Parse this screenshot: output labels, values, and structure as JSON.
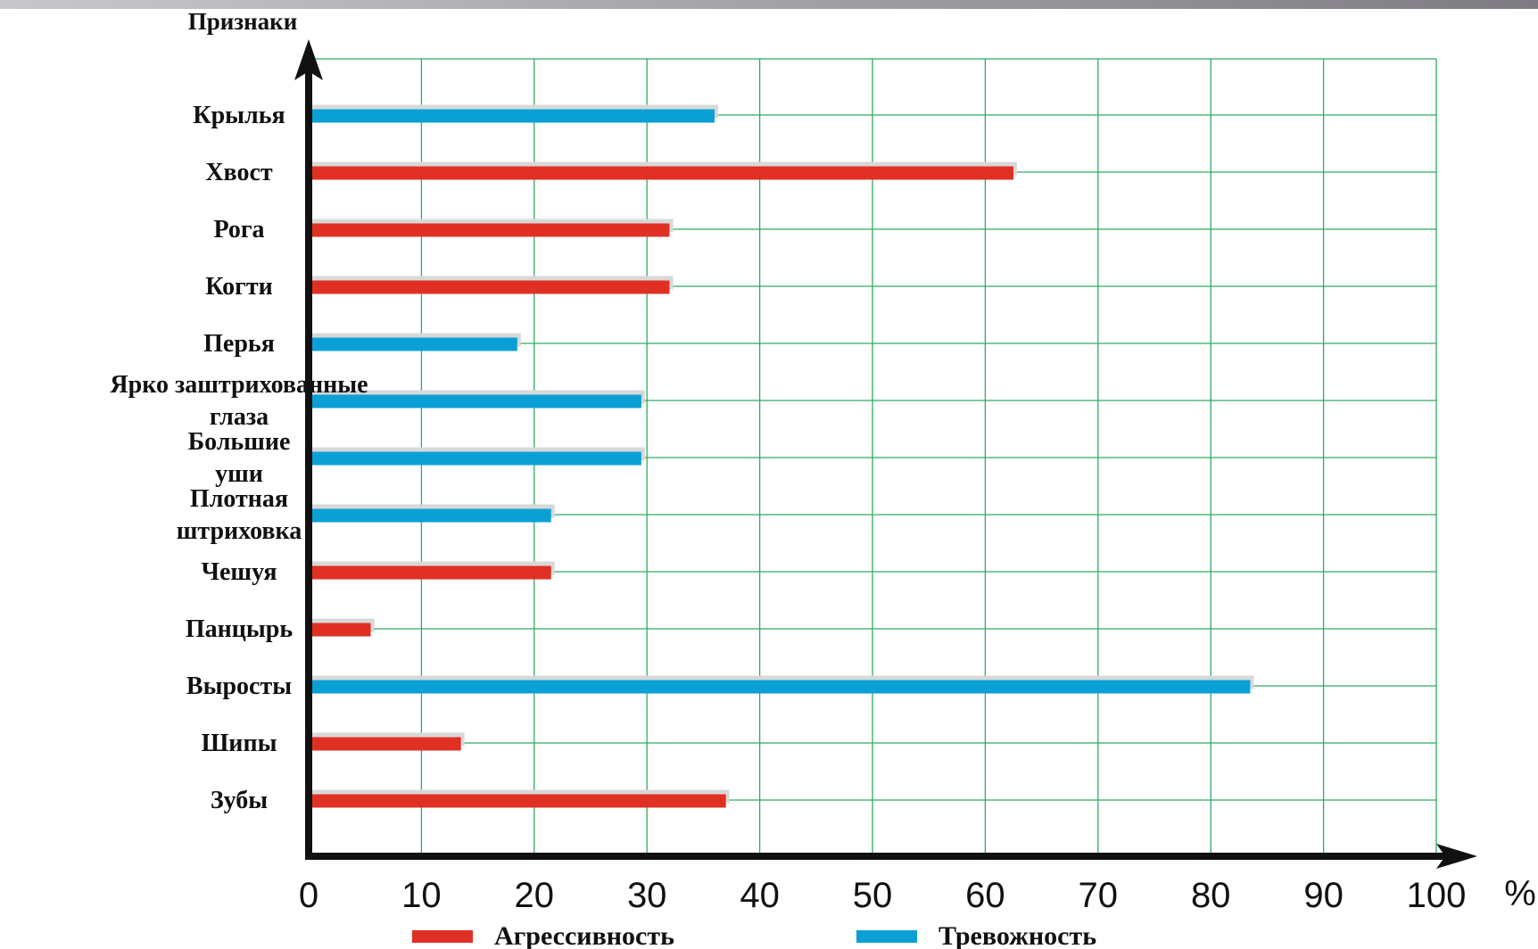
{
  "chart_data": {
    "type": "bar",
    "orientation": "horizontal",
    "ylabel": "Признаки",
    "xlabel": "%",
    "xlim": [
      0,
      100
    ],
    "xticks": [
      "0",
      "10",
      "20",
      "30",
      "40",
      "50",
      "60",
      "70",
      "80",
      "90",
      "100"
    ],
    "grid": true,
    "legend_position": "bottom",
    "legend": [
      {
        "name": "Агрессивность",
        "color": "#e03024"
      },
      {
        "name": "Тревожность",
        "color": "#0aa0d6"
      }
    ],
    "categories": [
      {
        "label": [
          "Крылья"
        ],
        "value": 36,
        "series": "Тревожность"
      },
      {
        "label": [
          "Хвост"
        ],
        "value": 62.5,
        "series": "Агрессивность"
      },
      {
        "label": [
          "Рога"
        ],
        "value": 32,
        "series": "Агрессивность"
      },
      {
        "label": [
          "Когти"
        ],
        "value": 32,
        "series": "Агрессивность"
      },
      {
        "label": [
          "Перья"
        ],
        "value": 18.5,
        "series": "Тревожность"
      },
      {
        "label": [
          "Ярко заштрихованные",
          "глаза"
        ],
        "value": 29.5,
        "series": "Тревожность"
      },
      {
        "label": [
          "Большие",
          "уши"
        ],
        "value": 29.5,
        "series": "Тревожность"
      },
      {
        "label": [
          "Плотная",
          "штриховка"
        ],
        "value": 21.5,
        "series": "Тревожность"
      },
      {
        "label": [
          "Чешуя"
        ],
        "value": 21.5,
        "series": "Агрессивность"
      },
      {
        "label": [
          "Панцырь"
        ],
        "value": 5.5,
        "series": "Агрессивность"
      },
      {
        "label": [
          "Выросты"
        ],
        "value": 83.5,
        "series": "Тревожность"
      },
      {
        "label": [
          "Шипы"
        ],
        "value": 13.5,
        "series": "Агрессивность"
      },
      {
        "label": [
          "Зубы"
        ],
        "value": 37,
        "series": "Агрессивность"
      }
    ],
    "colors": {
      "grid": "#2eab62",
      "axis": "#111111",
      "shadow": "#d8d8d8"
    }
  }
}
